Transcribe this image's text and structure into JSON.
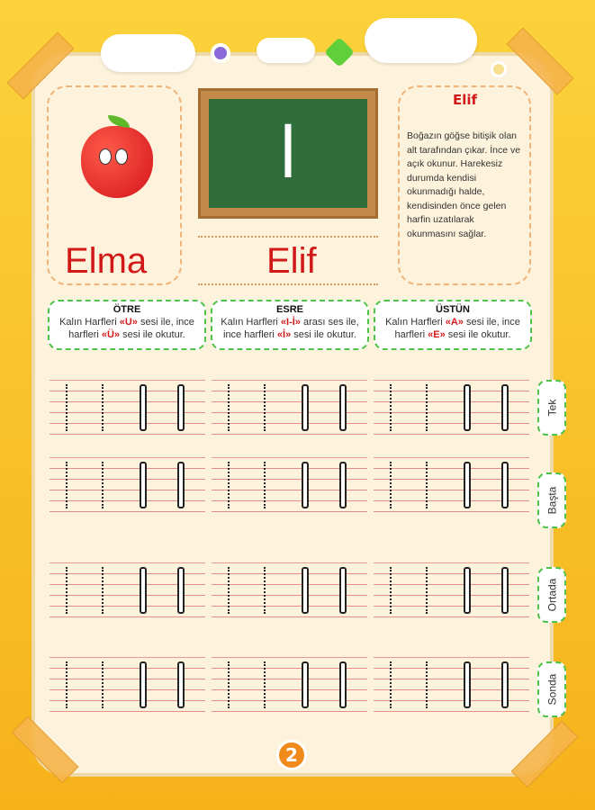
{
  "picture": {
    "word": "Elma"
  },
  "board": {
    "letter": "ا",
    "name": "Elif"
  },
  "info": {
    "title": "Elif",
    "text": "Boğazın göğse bitişik olan alt tarafından çıkar. İnce ve açık okunur. Harekesiz durumda kendisi okunmadığı halde, kendisinden önce gelen harfin uzatılarak okunmasını sağlar."
  },
  "instructions": [
    {
      "title": "ÖTRE",
      "pre": "Kalın Harfleri ",
      "m1": "«U»",
      "mid": " sesi ile, ince harfleri ",
      "m2": "«Ü»",
      "post": " sesi ile okutur."
    },
    {
      "title": "ESRE",
      "pre": "Kalın Harfleri ",
      "m1": "«I-İ»",
      "mid": " arası ses ile, ince harfleri ",
      "m2": "«İ»",
      "post": " sesi ile okutur."
    },
    {
      "title": "ÜSTÜN",
      "pre": "Kalın Harfleri ",
      "m1": "«A»",
      "mid": " sesi ile, ince harfleri ",
      "m2": "«E»",
      "post": " sesi ile okutur."
    }
  ],
  "tabs": [
    "Tek",
    "Başta",
    "Ortada",
    "Sonda"
  ],
  "page_number": "2",
  "colors": {
    "accent_red": "#d1191a",
    "border_green": "#4fc24a",
    "background": "#f7b21a"
  }
}
